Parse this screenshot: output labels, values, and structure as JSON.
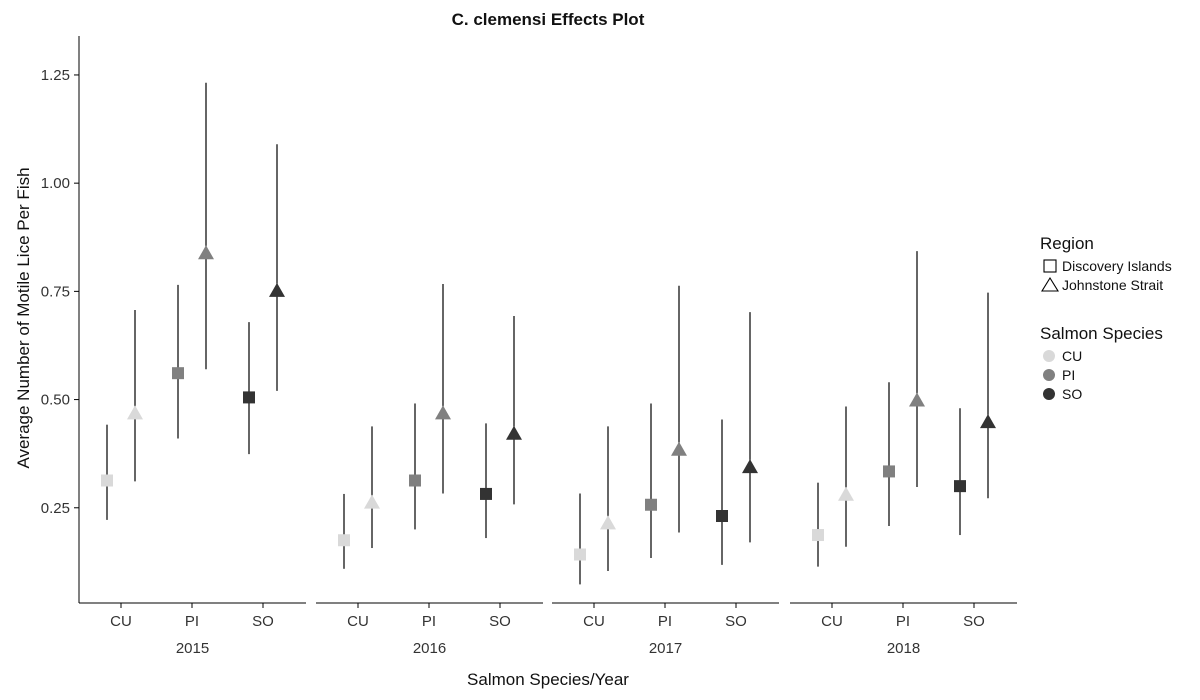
{
  "chart_data": {
    "type": "scatter",
    "title": "C. clemensi Effects Plot",
    "xlabel": "Salmon Species/Year",
    "ylabel": "Average Number of Motile Lice Per Fish",
    "ylim": [
      0.03,
      1.34
    ],
    "y_ticks": [
      "0.25",
      "0.50",
      "0.75",
      "1.00",
      "1.25"
    ],
    "grid": false,
    "legend_placement": "right",
    "panels": [
      "2015",
      "2016",
      "2017",
      "2018"
    ],
    "categories": [
      "CU",
      "PI",
      "SO"
    ],
    "legends": {
      "region": {
        "title": "Region",
        "items": [
          {
            "label": "Discovery Islands",
            "shape": "square"
          },
          {
            "label": "Johnstone Strait",
            "shape": "triangle"
          }
        ]
      },
      "species": {
        "title": "Salmon Species",
        "items": [
          {
            "label": "CU",
            "color": "#d9d9d9"
          },
          {
            "label": "PI",
            "color": "#808080"
          },
          {
            "label": "SO",
            "color": "#333333"
          }
        ]
      }
    },
    "series": [
      {
        "year": "2015",
        "species": "CU",
        "region": "Discovery Islands",
        "y": 0.313,
        "lower": 0.222,
        "upper": 0.442
      },
      {
        "year": "2015",
        "species": "CU",
        "region": "Johnstone Strait",
        "y": 0.468,
        "lower": 0.311,
        "upper": 0.707
      },
      {
        "year": "2015",
        "species": "PI",
        "region": "Discovery Islands",
        "y": 0.561,
        "lower": 0.41,
        "upper": 0.765
      },
      {
        "year": "2015",
        "species": "PI",
        "region": "Johnstone Strait",
        "y": 0.838,
        "lower": 0.57,
        "upper": 1.232
      },
      {
        "year": "2015",
        "species": "SO",
        "region": "Discovery Islands",
        "y": 0.505,
        "lower": 0.374,
        "upper": 0.679
      },
      {
        "year": "2015",
        "species": "SO",
        "region": "Johnstone Strait",
        "y": 0.751,
        "lower": 0.52,
        "upper": 1.09
      },
      {
        "year": "2016",
        "species": "CU",
        "region": "Discovery Islands",
        "y": 0.175,
        "lower": 0.109,
        "upper": 0.282
      },
      {
        "year": "2016",
        "species": "CU",
        "region": "Johnstone Strait",
        "y": 0.262,
        "lower": 0.157,
        "upper": 0.438
      },
      {
        "year": "2016",
        "species": "PI",
        "region": "Discovery Islands",
        "y": 0.313,
        "lower": 0.2,
        "upper": 0.491
      },
      {
        "year": "2016",
        "species": "PI",
        "region": "Johnstone Strait",
        "y": 0.468,
        "lower": 0.283,
        "upper": 0.767
      },
      {
        "year": "2016",
        "species": "SO",
        "region": "Discovery Islands",
        "y": 0.282,
        "lower": 0.18,
        "upper": 0.445
      },
      {
        "year": "2016",
        "species": "SO",
        "region": "Johnstone Strait",
        "y": 0.421,
        "lower": 0.258,
        "upper": 0.693
      },
      {
        "year": "2017",
        "species": "CU",
        "region": "Discovery Islands",
        "y": 0.142,
        "lower": 0.073,
        "upper": 0.283
      },
      {
        "year": "2017",
        "species": "CU",
        "region": "Johnstone Strait",
        "y": 0.214,
        "lower": 0.104,
        "upper": 0.438
      },
      {
        "year": "2017",
        "species": "PI",
        "region": "Discovery Islands",
        "y": 0.257,
        "lower": 0.134,
        "upper": 0.491
      },
      {
        "year": "2017",
        "species": "PI",
        "region": "Johnstone Strait",
        "y": 0.384,
        "lower": 0.193,
        "upper": 0.763
      },
      {
        "year": "2017",
        "species": "SO",
        "region": "Discovery Islands",
        "y": 0.231,
        "lower": 0.118,
        "upper": 0.454
      },
      {
        "year": "2017",
        "species": "SO",
        "region": "Johnstone Strait",
        "y": 0.344,
        "lower": 0.17,
        "upper": 0.702
      },
      {
        "year": "2018",
        "species": "CU",
        "region": "Discovery Islands",
        "y": 0.187,
        "lower": 0.114,
        "upper": 0.308
      },
      {
        "year": "2018",
        "species": "CU",
        "region": "Johnstone Strait",
        "y": 0.28,
        "lower": 0.16,
        "upper": 0.484
      },
      {
        "year": "2018",
        "species": "PI",
        "region": "Discovery Islands",
        "y": 0.334,
        "lower": 0.208,
        "upper": 0.54
      },
      {
        "year": "2018",
        "species": "PI",
        "region": "Johnstone Strait",
        "y": 0.498,
        "lower": 0.298,
        "upper": 0.843
      },
      {
        "year": "2018",
        "species": "SO",
        "region": "Discovery Islands",
        "y": 0.3,
        "lower": 0.187,
        "upper": 0.48
      },
      {
        "year": "2018",
        "species": "SO",
        "region": "Johnstone Strait",
        "y": 0.448,
        "lower": 0.272,
        "upper": 0.747
      }
    ]
  }
}
